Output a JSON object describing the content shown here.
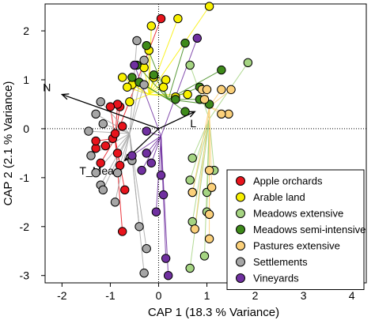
{
  "chart_data": {
    "type": "scatter",
    "xlabel": "CAP 1 (18.3 % Variance)",
    "ylabel": "CAP 2 (2.1 % Variance)",
    "xlim": [
      -2.35,
      4.3
    ],
    "ylim": [
      -3.15,
      2.55
    ],
    "xticks": [
      -2,
      -1,
      0,
      1,
      2,
      3,
      4
    ],
    "yticks": [
      -3,
      -2,
      -1,
      0,
      1,
      2
    ],
    "reference_lines": {
      "x": 0,
      "y": 0,
      "style": "dotted"
    },
    "legend_position": "bottom-right",
    "series": [
      {
        "name": "Apple orchards",
        "color": "#e8141c",
        "centroid": [
          -0.9,
          -0.2
        ],
        "points": [
          [
            0.05,
            2.25
          ],
          [
            -1.3,
            -0.4
          ],
          [
            -1.1,
            -0.35
          ],
          [
            -0.95,
            -0.2
          ],
          [
            -0.85,
            -0.5
          ],
          [
            -0.8,
            -0.75
          ],
          [
            -0.75,
            0.05
          ],
          [
            -0.9,
            -0.1
          ],
          [
            -0.8,
            0.45
          ],
          [
            -0.85,
            0.5
          ],
          [
            -1.0,
            0.45
          ],
          [
            -0.7,
            -1.25
          ],
          [
            -0.75,
            -2.1
          ],
          [
            -1.2,
            -0.7
          ],
          [
            -1.3,
            -0.25
          ]
        ]
      },
      {
        "name": "Arable land",
        "color": "#f8f000",
        "centroid": [
          -0.2,
          0.7
        ],
        "points": [
          [
            1.05,
            2.5
          ],
          [
            0.4,
            2.25
          ],
          [
            -0.15,
            2.1
          ],
          [
            -0.2,
            1.6
          ],
          [
            -0.3,
            1.25
          ],
          [
            -0.1,
            1.05
          ],
          [
            0.15,
            1.0
          ],
          [
            -0.75,
            1.05
          ],
          [
            -0.55,
            0.9
          ],
          [
            -0.6,
            0.55
          ],
          [
            -0.65,
            0.85
          ],
          [
            0.35,
            0.65
          ],
          [
            0.6,
            0.7
          ],
          [
            0.1,
            0.85
          ]
        ]
      },
      {
        "name": "Meadows extensive",
        "color": "#a5d482",
        "centroid": [
          1.05,
          0.2
        ],
        "points": [
          [
            1.85,
            1.35
          ],
          [
            0.65,
            -1.05
          ],
          [
            0.7,
            -1.3
          ],
          [
            0.7,
            -1.9
          ],
          [
            1.0,
            -1.3
          ],
          [
            1.0,
            -1.7
          ],
          [
            0.95,
            -2.6
          ],
          [
            0.65,
            -2.85
          ],
          [
            1.15,
            -0.85
          ],
          [
            0.7,
            -0.6
          ],
          [
            0.65,
            1.3
          ]
        ]
      },
      {
        "name": "Meadows semi-intensive",
        "color": "#3e8a1a",
        "centroid": [
          0.2,
          0.6
        ],
        "points": [
          [
            0.55,
            1.75
          ],
          [
            -0.25,
            1.7
          ],
          [
            -0.45,
            1.3
          ],
          [
            -0.55,
            1.05
          ],
          [
            -0.4,
            0.95
          ],
          [
            0.35,
            0.6
          ],
          [
            0.55,
            0.35
          ],
          [
            0.85,
            0.85
          ],
          [
            1.3,
            1.2
          ],
          [
            -0.1,
            1.1
          ],
          [
            0.85,
            0.6
          ],
          [
            1.05,
            0.5
          ]
        ]
      },
      {
        "name": "Pastures extensive",
        "color": "#fbd07a",
        "centroid": [
          1.05,
          0.45
        ],
        "points": [
          [
            0.9,
            0.8
          ],
          [
            1.0,
            0.8
          ],
          [
            1.3,
            0.8
          ],
          [
            1.5,
            0.8
          ],
          [
            1.45,
            0.3
          ],
          [
            1.3,
            0.3
          ],
          [
            0.95,
            0.6
          ],
          [
            1.05,
            -0.85
          ],
          [
            1.1,
            -1.2
          ],
          [
            1.05,
            -1.75
          ],
          [
            1.05,
            -2.25
          ],
          [
            0.7,
            -1.3
          ],
          [
            0.75,
            -2.05
          ]
        ]
      },
      {
        "name": "Settlements",
        "color": "#a6a6a6",
        "centroid": [
          -0.6,
          -0.1
        ],
        "points": [
          [
            -0.45,
            1.8
          ],
          [
            -0.3,
            1.4
          ],
          [
            -0.3,
            0.9
          ],
          [
            -1.2,
            0.55
          ],
          [
            -1.3,
            0.3
          ],
          [
            -1.15,
            0.1
          ],
          [
            -1.45,
            -0.05
          ],
          [
            -1.4,
            -0.55
          ],
          [
            -1.3,
            -0.9
          ],
          [
            -1.2,
            -1.15
          ],
          [
            -0.85,
            -0.9
          ],
          [
            -0.55,
            -0.65
          ],
          [
            -0.4,
            -2.0
          ],
          [
            -0.25,
            -2.45
          ],
          [
            -0.3,
            -2.95
          ],
          [
            -1.15,
            -1.25
          ],
          [
            -0.9,
            -1.5
          ]
        ]
      },
      {
        "name": "Vineyards",
        "color": "#7030a0",
        "centroid": [
          0.05,
          -0.15
        ],
        "points": [
          [
            0.8,
            1.85
          ],
          [
            -0.5,
            1.3
          ],
          [
            -0.35,
            -0.85
          ],
          [
            -0.25,
            -0.5
          ],
          [
            -0.15,
            -0.7
          ],
          [
            0.05,
            -0.95
          ],
          [
            0.1,
            -1.35
          ],
          [
            -0.05,
            -1.7
          ],
          [
            0.15,
            -2.65
          ],
          [
            0.2,
            -3.0
          ],
          [
            -0.25,
            -0.05
          ],
          [
            -0.55,
            -0.55
          ]
        ]
      }
    ],
    "vectors": [
      {
        "label": "N",
        "end": [
          -2.0,
          0.7
        ]
      },
      {
        "label": "L",
        "end": [
          0.75,
          0.35
        ]
      },
      {
        "label": "T_Mean",
        "end": [
          -0.7,
          -0.65
        ]
      }
    ],
    "vector_origin": [
      0,
      0
    ]
  }
}
